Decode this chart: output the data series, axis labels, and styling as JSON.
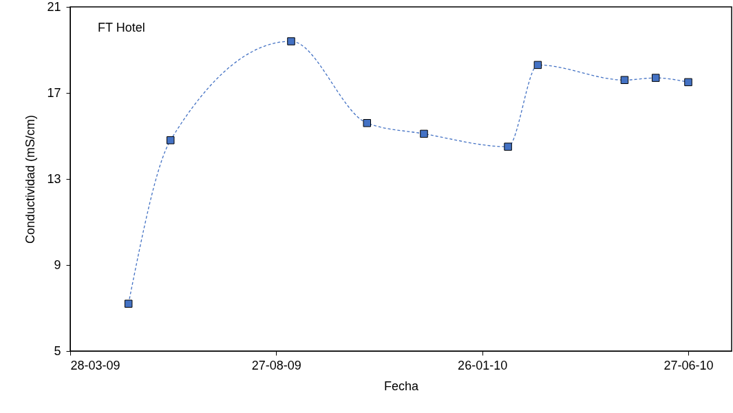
{
  "chart_data": {
    "type": "line",
    "xlabel": "Fecha",
    "ylabel": "Conductividad (mS/cm)",
    "annotations": [
      "FT Hotel"
    ],
    "x": [
      "2009-05-10",
      "2009-06-10",
      "2009-09-07",
      "2009-11-02",
      "2009-12-14",
      "2010-02-14",
      "2010-03-08",
      "2010-05-11",
      "2010-06-03",
      "2010-06-27"
    ],
    "series": [
      {
        "color": "#4472c4",
        "values": [
          7.2,
          14.8,
          19.4,
          15.6,
          15.1,
          14.5,
          18.3,
          17.6,
          17.7,
          17.5
        ]
      }
    ],
    "xlim": [
      "2009-03-28",
      "2010-07-29"
    ],
    "xticks": [
      {
        "value": "2009-03-28",
        "label": "28-03-09"
      },
      {
        "value": "2009-08-27",
        "label": "27-08-09"
      },
      {
        "value": "2010-01-26",
        "label": "26-01-10"
      },
      {
        "value": "2010-06-27",
        "label": "27-06-10"
      }
    ],
    "ylim": [
      5,
      21
    ],
    "yticks": [
      5,
      9,
      13,
      17,
      21
    ],
    "grid": false,
    "marker": "square",
    "line_style": "dashed"
  }
}
